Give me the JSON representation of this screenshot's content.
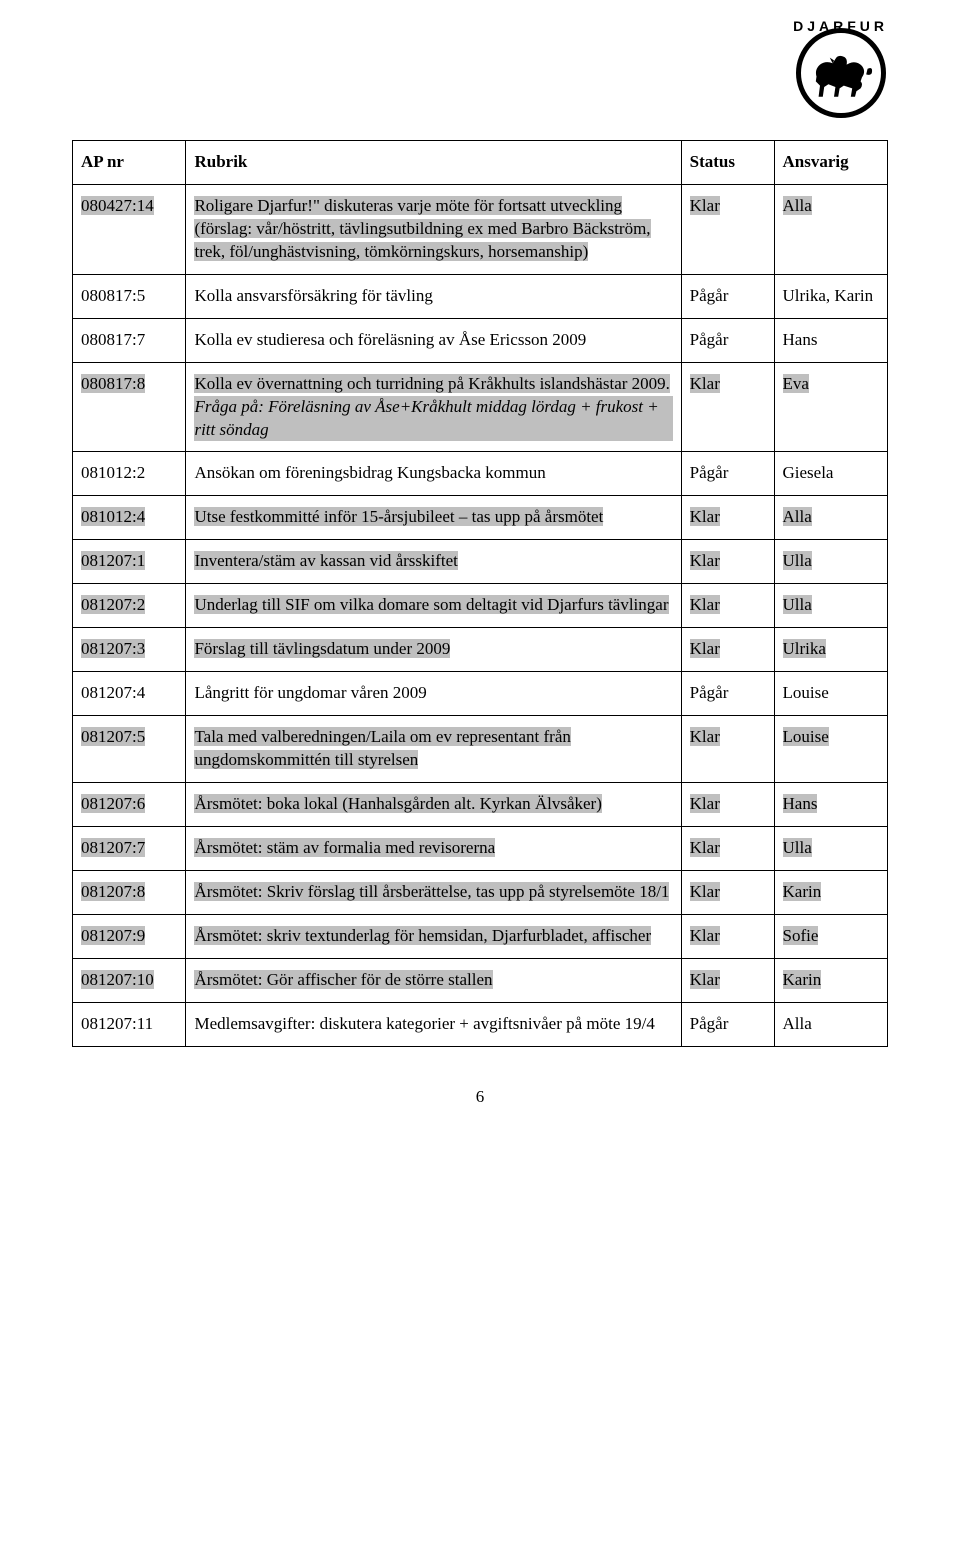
{
  "logo": {
    "text": "DJARFUR"
  },
  "headers": {
    "ap_nr": "AP nr",
    "rubrik": "Rubrik",
    "status": "Status",
    "ansvarig": "Ansvarig"
  },
  "rows": [
    {
      "ap": "080427:14",
      "rubrik_main": "Roligare Djarfur!\" diskuteras varje möte för fortsatt utveckling (förslag: vår/höstritt, tävlingsutbildning ex med Barbro Bäckström, trek, föl/unghästvisning, tömkörningskurs, horsemanship)",
      "rubrik_sub": "",
      "status": "Klar",
      "ansvarig": "Alla",
      "hl_ap": true,
      "hl_rub": true,
      "hl_status": true,
      "hl_ans": true
    },
    {
      "ap": "080817:5",
      "rubrik_main": "Kolla ansvarsförsäkring för tävling",
      "rubrik_sub": "",
      "status": "Pågår",
      "ansvarig": "Ulrika, Karin",
      "hl_ap": false,
      "hl_rub": false,
      "hl_status": false,
      "hl_ans": false
    },
    {
      "ap": "080817:7",
      "rubrik_main": "Kolla ev studieresa och föreläsning av Åse Ericsson 2009",
      "rubrik_sub": "",
      "status": "Pågår",
      "ansvarig": "Hans",
      "hl_ap": false,
      "hl_rub": false,
      "hl_status": false,
      "hl_ans": false
    },
    {
      "ap": "080817:8",
      "rubrik_main": "Kolla ev övernattning och turridning på Kråkhults islandshästar 2009.",
      "rubrik_sub": "Fråga på: Föreläsning av Åse+Kråkhult middag lördag + frukost + ritt söndag",
      "status": "Klar",
      "ansvarig": "Eva",
      "hl_ap": true,
      "hl_rub": true,
      "hl_status": true,
      "hl_ans": true
    },
    {
      "ap": "081012:2",
      "rubrik_main": "Ansökan om föreningsbidrag Kungsbacka kommun",
      "rubrik_sub": "",
      "status": "Pågår",
      "ansvarig": "Giesela",
      "hl_ap": false,
      "hl_rub": false,
      "hl_status": false,
      "hl_ans": false
    },
    {
      "ap": "081012:4",
      "rubrik_main": "Utse festkommitté inför 15-årsjubileet – tas upp på årsmötet",
      "rubrik_sub": "",
      "status": "Klar",
      "ansvarig": "Alla",
      "hl_ap": true,
      "hl_rub": true,
      "hl_status": true,
      "hl_ans": true
    },
    {
      "ap": "081207:1",
      "rubrik_main": "Inventera/stäm av kassan vid årsskiftet",
      "rubrik_sub": "",
      "status": "Klar",
      "ansvarig": "Ulla",
      "hl_ap": true,
      "hl_rub": true,
      "hl_status": true,
      "hl_ans": true
    },
    {
      "ap": "081207:2",
      "rubrik_main": "Underlag till SIF om vilka domare som deltagit vid Djarfurs tävlingar",
      "rubrik_sub": "",
      "status": "Klar",
      "ansvarig": "Ulla",
      "hl_ap": true,
      "hl_rub": true,
      "hl_status": true,
      "hl_ans": true
    },
    {
      "ap": "081207:3",
      "rubrik_main": "Förslag till tävlingsdatum under 2009",
      "rubrik_sub": "",
      "status": "Klar",
      "ansvarig": "Ulrika",
      "hl_ap": true,
      "hl_rub": true,
      "hl_status": true,
      "hl_ans": true
    },
    {
      "ap": "081207:4",
      "rubrik_main": "Långritt för ungdomar våren 2009",
      "rubrik_sub": "",
      "status": "Pågår",
      "ansvarig": "Louise",
      "hl_ap": false,
      "hl_rub": false,
      "hl_status": false,
      "hl_ans": false
    },
    {
      "ap": "081207:5",
      "rubrik_main": "Tala med valberedningen/Laila om ev representant från ungdomskommittén till styrelsen",
      "rubrik_sub": "",
      "status": "Klar",
      "ansvarig": "Louise",
      "hl_ap": true,
      "hl_rub": true,
      "hl_status": true,
      "hl_ans": true
    },
    {
      "ap": "081207:6",
      "rubrik_main": "Årsmötet: boka lokal (Hanhalsgården alt. Kyrkan Älvsåker)",
      "rubrik_sub": "",
      "status": "Klar",
      "ansvarig": "Hans",
      "hl_ap": true,
      "hl_rub": true,
      "hl_status": true,
      "hl_ans": true
    },
    {
      "ap": "081207:7",
      "rubrik_main": "Årsmötet: stäm av formalia med revisorerna",
      "rubrik_sub": "",
      "status": "Klar",
      "ansvarig": "Ulla",
      "hl_ap": true,
      "hl_rub": true,
      "hl_status": true,
      "hl_ans": true
    },
    {
      "ap": "081207:8",
      "rubrik_main": "Årsmötet: Skriv förslag till årsberättelse, tas upp på styrelsemöte 18/1",
      "rubrik_sub": "",
      "status": "Klar",
      "ansvarig": "Karin",
      "hl_ap": true,
      "hl_rub": true,
      "hl_status": true,
      "hl_ans": true
    },
    {
      "ap": "081207:9",
      "rubrik_main": "Årsmötet: skriv textunderlag för hemsidan, Djarfurbladet, affischer",
      "rubrik_sub": "",
      "status": "Klar",
      "ansvarig": "Sofie",
      "hl_ap": true,
      "hl_rub": true,
      "hl_status": true,
      "hl_ans": true
    },
    {
      "ap": "081207:10",
      "rubrik_main": "Årsmötet: Gör affischer för de större stallen",
      "rubrik_sub": "",
      "status": "Klar",
      "ansvarig": "Karin",
      "hl_ap": true,
      "hl_rub": true,
      "hl_status": true,
      "hl_ans": true
    },
    {
      "ap": "081207:11",
      "rubrik_main": "Medlemsavgifter: diskutera kategorier + avgiftsnivåer på möte 19/4",
      "rubrik_sub": "",
      "status": "Pågår",
      "ansvarig": "Alla",
      "hl_ap": false,
      "hl_rub": false,
      "hl_status": false,
      "hl_ans": false
    }
  ],
  "page_number": "6",
  "colors": {
    "highlight": "#bfbfbf",
    "text": "#000000",
    "background": "#ffffff",
    "border": "#000000"
  }
}
